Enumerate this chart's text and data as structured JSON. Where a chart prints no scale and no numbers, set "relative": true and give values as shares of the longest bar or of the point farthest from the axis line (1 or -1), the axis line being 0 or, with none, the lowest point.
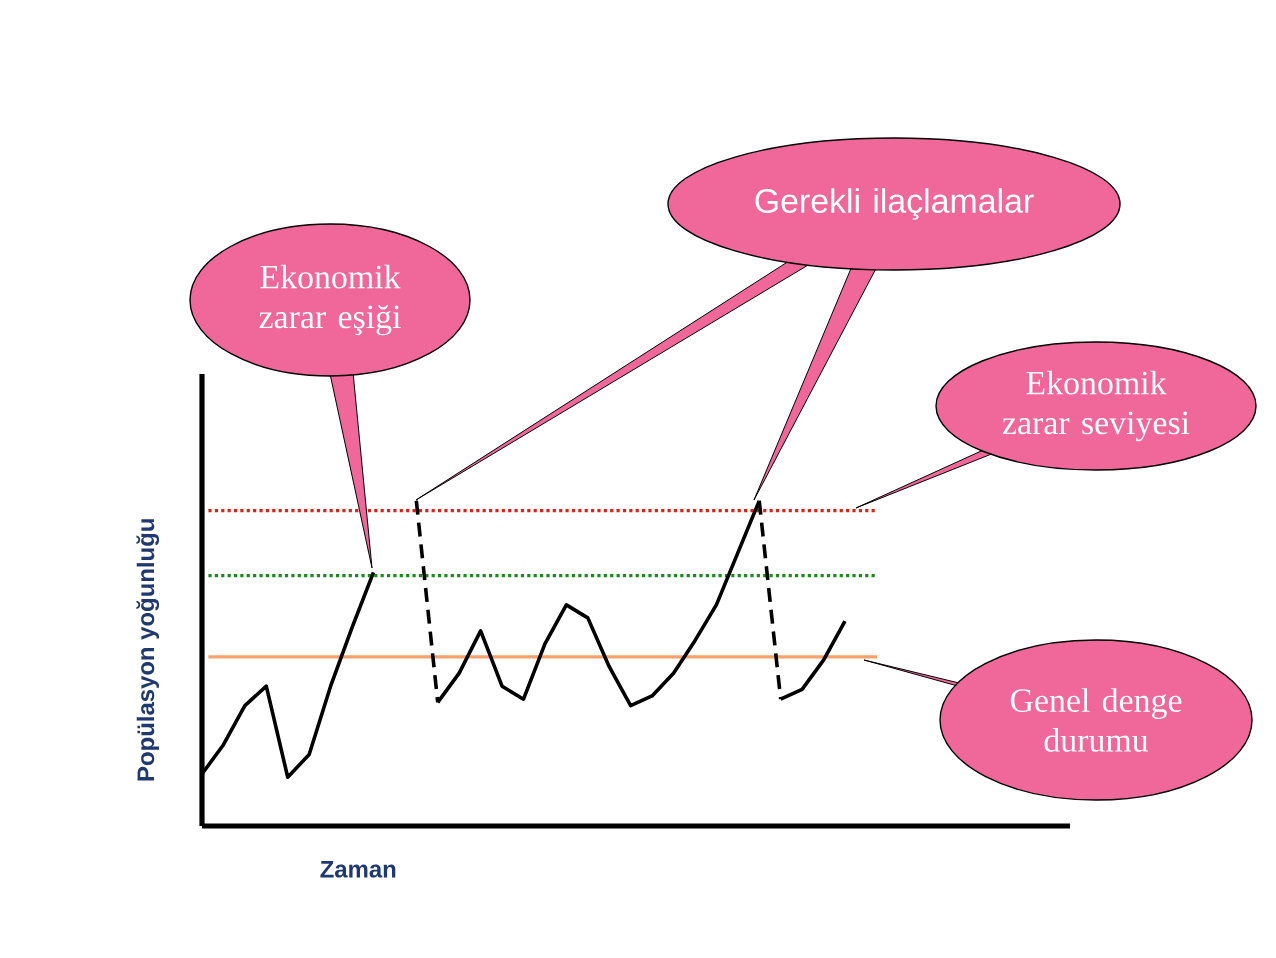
{
  "chart_data": {
    "type": "line",
    "relative": true,
    "xlabel": "Zaman",
    "ylabel": "Popülasyon yoğunluğu",
    "categories": [
      null,
      null,
      null,
      null,
      null,
      null,
      null,
      null,
      null,
      null,
      null,
      null,
      null,
      null,
      null,
      null,
      null,
      null,
      null,
      null,
      null,
      null,
      null,
      null,
      null,
      null,
      null,
      null,
      null,
      null,
      null,
      null,
      null,
      null,
      null,
      null,
      null,
      null,
      null,
      null,
      null
    ],
    "series": [
      {
        "color": "#000000",
        "line_style": "solid",
        "values": [
          0.16,
          0.25,
          0.37,
          0.43,
          0.15,
          0.22,
          0.43,
          0.61,
          0.78,
          null,
          null,
          null,
          null,
          null,
          null,
          null,
          null,
          null,
          null,
          null,
          null,
          null,
          null,
          null,
          null,
          null,
          null,
          null,
          null,
          null,
          null,
          null,
          null,
          null,
          null,
          null,
          null,
          null,
          null,
          null,
          null
        ]
      },
      {
        "color": "#000000",
        "line_style": "dashed",
        "values": [
          null,
          null,
          null,
          null,
          null,
          null,
          null,
          null,
          null,
          null,
          1.0,
          0.38,
          null,
          null,
          null,
          null,
          null,
          null,
          null,
          null,
          null,
          null,
          null,
          null,
          null,
          null,
          null,
          null,
          null,
          null,
          null,
          null,
          null,
          null,
          null,
          null,
          null,
          null,
          null,
          null,
          null
        ]
      },
      {
        "color": "#000000",
        "line_style": "solid",
        "values": [
          null,
          null,
          null,
          null,
          null,
          null,
          null,
          null,
          null,
          null,
          null,
          0.38,
          0.47,
          0.6,
          0.43,
          0.39,
          0.56,
          0.68,
          0.64,
          0.49,
          0.37,
          0.4,
          0.47,
          0.57,
          0.68,
          0.84,
          1.0,
          null,
          null,
          null,
          null,
          null,
          null,
          null,
          null,
          null,
          null,
          null,
          null,
          null,
          null
        ]
      },
      {
        "color": "#000000",
        "line_style": "dashed",
        "values": [
          null,
          null,
          null,
          null,
          null,
          null,
          null,
          null,
          null,
          null,
          null,
          null,
          null,
          null,
          null,
          null,
          null,
          null,
          null,
          null,
          null,
          null,
          null,
          null,
          null,
          null,
          1.0,
          0.39,
          null,
          null,
          null,
          null,
          null,
          null,
          null,
          null,
          null,
          null,
          null,
          null,
          null
        ]
      },
      {
        "color": "#000000",
        "line_style": "solid",
        "values": [
          null,
          null,
          null,
          null,
          null,
          null,
          null,
          null,
          null,
          null,
          null,
          null,
          null,
          null,
          null,
          null,
          null,
          null,
          null,
          null,
          null,
          null,
          null,
          null,
          null,
          null,
          null,
          0.39,
          0.42,
          0.51,
          0.63,
          null,
          null,
          null,
          null,
          null,
          null,
          null,
          null,
          null,
          null
        ]
      }
    ],
    "ref_lines": [
      {
        "axis": "y",
        "value": 0.97,
        "label": "Ekonomik zarar seviyesi",
        "color": "#e0201b",
        "line_style": "dotted"
      },
      {
        "axis": "y",
        "value": 0.77,
        "label": "Ekonomik zarar eşiği",
        "color": "#1a8a1a",
        "line_style": "dotted"
      },
      {
        "axis": "y",
        "value": 0.52,
        "label": "Genel denge durumu",
        "color": "#f5a26e",
        "line_style": "solid"
      }
    ],
    "annotations": [
      "Gerekli ilaçlamalar"
    ]
  }
}
